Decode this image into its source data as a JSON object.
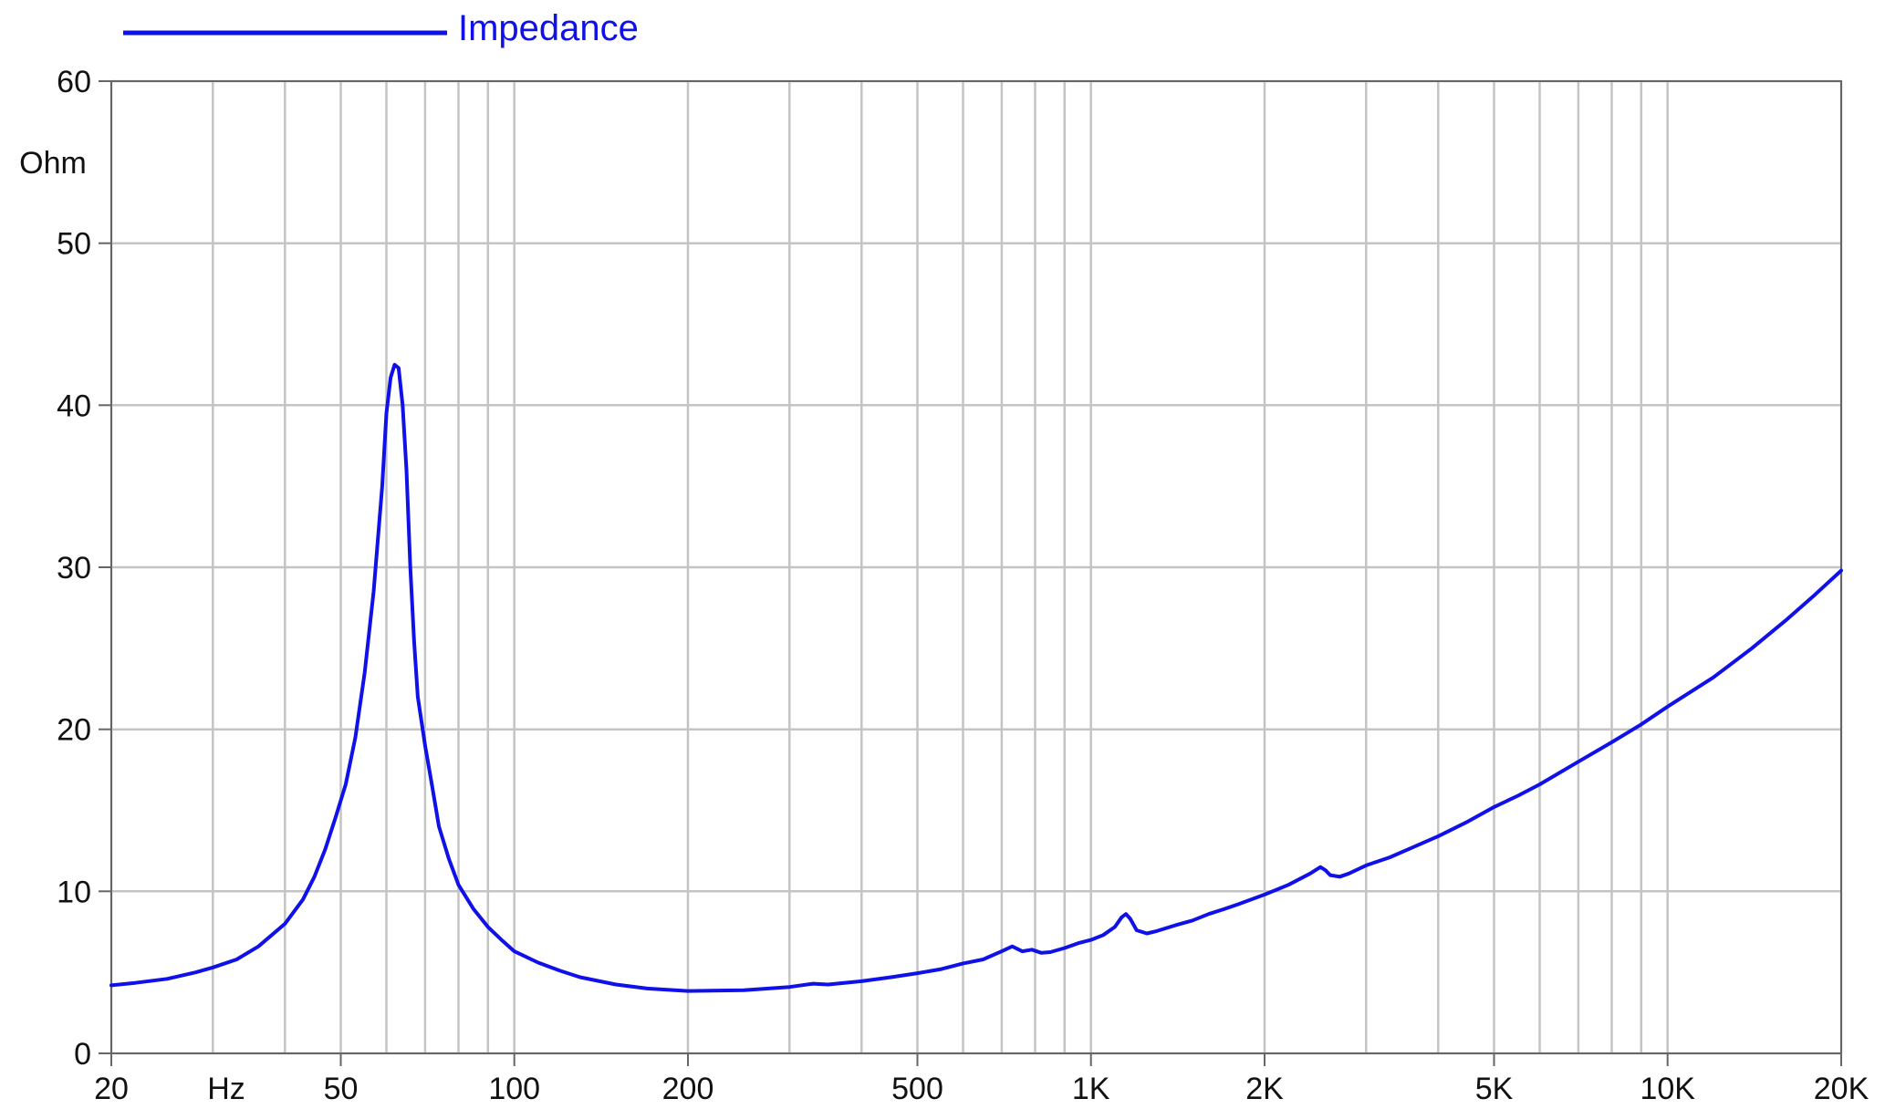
{
  "chart_data": {
    "type": "line",
    "xscale": "log",
    "xlim": [
      20,
      20000
    ],
    "ylim": [
      0,
      60
    ],
    "grid": true,
    "legend": "top-left",
    "ylabel": "Ohm",
    "xlabel": "Hz",
    "x_ticks": [
      {
        "value": 20,
        "label": "20"
      },
      {
        "value": 50,
        "label": "50"
      },
      {
        "value": 100,
        "label": "100"
      },
      {
        "value": 200,
        "label": "200"
      },
      {
        "value": 500,
        "label": "500"
      },
      {
        "value": 1000,
        "label": "1K"
      },
      {
        "value": 2000,
        "label": "2K"
      },
      {
        "value": 5000,
        "label": "5K"
      },
      {
        "value": 10000,
        "label": "10K"
      },
      {
        "value": 20000,
        "label": "20K"
      }
    ],
    "y_ticks": [
      {
        "value": 0,
        "label": "0"
      },
      {
        "value": 10,
        "label": "10"
      },
      {
        "value": 20,
        "label": "20"
      },
      {
        "value": 30,
        "label": "30"
      },
      {
        "value": 40,
        "label": "40"
      },
      {
        "value": 50,
        "label": "50"
      },
      {
        "value": 60,
        "label": "60"
      }
    ],
    "x_grid": [
      20,
      30,
      40,
      50,
      60,
      70,
      80,
      90,
      100,
      200,
      300,
      400,
      500,
      600,
      700,
      800,
      900,
      1000,
      2000,
      3000,
      4000,
      5000,
      6000,
      7000,
      8000,
      9000,
      10000,
      20000
    ],
    "y_grid": [
      0,
      10,
      20,
      30,
      40,
      50,
      60
    ],
    "series": [
      {
        "name": "Impedance",
        "color": "#1010e8",
        "points": [
          [
            20,
            4.2
          ],
          [
            22,
            4.35
          ],
          [
            25,
            4.6
          ],
          [
            28,
            5.0
          ],
          [
            30,
            5.3
          ],
          [
            33,
            5.8
          ],
          [
            36,
            6.6
          ],
          [
            40,
            8.0
          ],
          [
            43,
            9.5
          ],
          [
            45,
            10.9
          ],
          [
            47,
            12.6
          ],
          [
            49,
            14.6
          ],
          [
            51,
            16.6
          ],
          [
            53,
            19.5
          ],
          [
            55,
            23.5
          ],
          [
            57,
            28.5
          ],
          [
            59,
            35.0
          ],
          [
            60,
            39.5
          ],
          [
            61,
            41.7
          ],
          [
            62,
            42.5
          ],
          [
            63,
            42.3
          ],
          [
            64,
            40.0
          ],
          [
            65,
            36.0
          ],
          [
            66,
            30.0
          ],
          [
            67,
            25.5
          ],
          [
            68,
            22.0
          ],
          [
            70,
            19.0
          ],
          [
            72,
            16.5
          ],
          [
            74,
            14.0
          ],
          [
            77,
            12.0
          ],
          [
            80,
            10.4
          ],
          [
            85,
            8.9
          ],
          [
            90,
            7.8
          ],
          [
            95,
            7.0
          ],
          [
            100,
            6.3
          ],
          [
            110,
            5.6
          ],
          [
            120,
            5.1
          ],
          [
            130,
            4.7
          ],
          [
            150,
            4.25
          ],
          [
            170,
            4.0
          ],
          [
            200,
            3.85
          ],
          [
            250,
            3.9
          ],
          [
            300,
            4.1
          ],
          [
            330,
            4.3
          ],
          [
            350,
            4.25
          ],
          [
            400,
            4.45
          ],
          [
            450,
            4.7
          ],
          [
            500,
            4.95
          ],
          [
            550,
            5.2
          ],
          [
            600,
            5.55
          ],
          [
            650,
            5.8
          ],
          [
            700,
            6.3
          ],
          [
            730,
            6.6
          ],
          [
            760,
            6.3
          ],
          [
            790,
            6.4
          ],
          [
            820,
            6.2
          ],
          [
            850,
            6.25
          ],
          [
            900,
            6.5
          ],
          [
            950,
            6.8
          ],
          [
            1000,
            7.0
          ],
          [
            1050,
            7.3
          ],
          [
            1100,
            7.8
          ],
          [
            1130,
            8.4
          ],
          [
            1150,
            8.6
          ],
          [
            1170,
            8.3
          ],
          [
            1200,
            7.6
          ],
          [
            1250,
            7.4
          ],
          [
            1300,
            7.55
          ],
          [
            1400,
            7.9
          ],
          [
            1500,
            8.2
          ],
          [
            1600,
            8.6
          ],
          [
            1700,
            8.9
          ],
          [
            1800,
            9.2
          ],
          [
            2000,
            9.8
          ],
          [
            2200,
            10.4
          ],
          [
            2400,
            11.1
          ],
          [
            2500,
            11.5
          ],
          [
            2550,
            11.3
          ],
          [
            2600,
            11.0
          ],
          [
            2700,
            10.9
          ],
          [
            2800,
            11.1
          ],
          [
            3000,
            11.6
          ],
          [
            3300,
            12.1
          ],
          [
            3500,
            12.5
          ],
          [
            4000,
            13.4
          ],
          [
            4500,
            14.3
          ],
          [
            5000,
            15.2
          ],
          [
            5500,
            15.9
          ],
          [
            6000,
            16.6
          ],
          [
            7000,
            18.0
          ],
          [
            8000,
            19.2
          ],
          [
            9000,
            20.3
          ],
          [
            10000,
            21.4
          ],
          [
            12000,
            23.2
          ],
          [
            14000,
            25.0
          ],
          [
            16000,
            26.7
          ],
          [
            18000,
            28.3
          ],
          [
            20000,
            29.8
          ]
        ]
      }
    ]
  }
}
